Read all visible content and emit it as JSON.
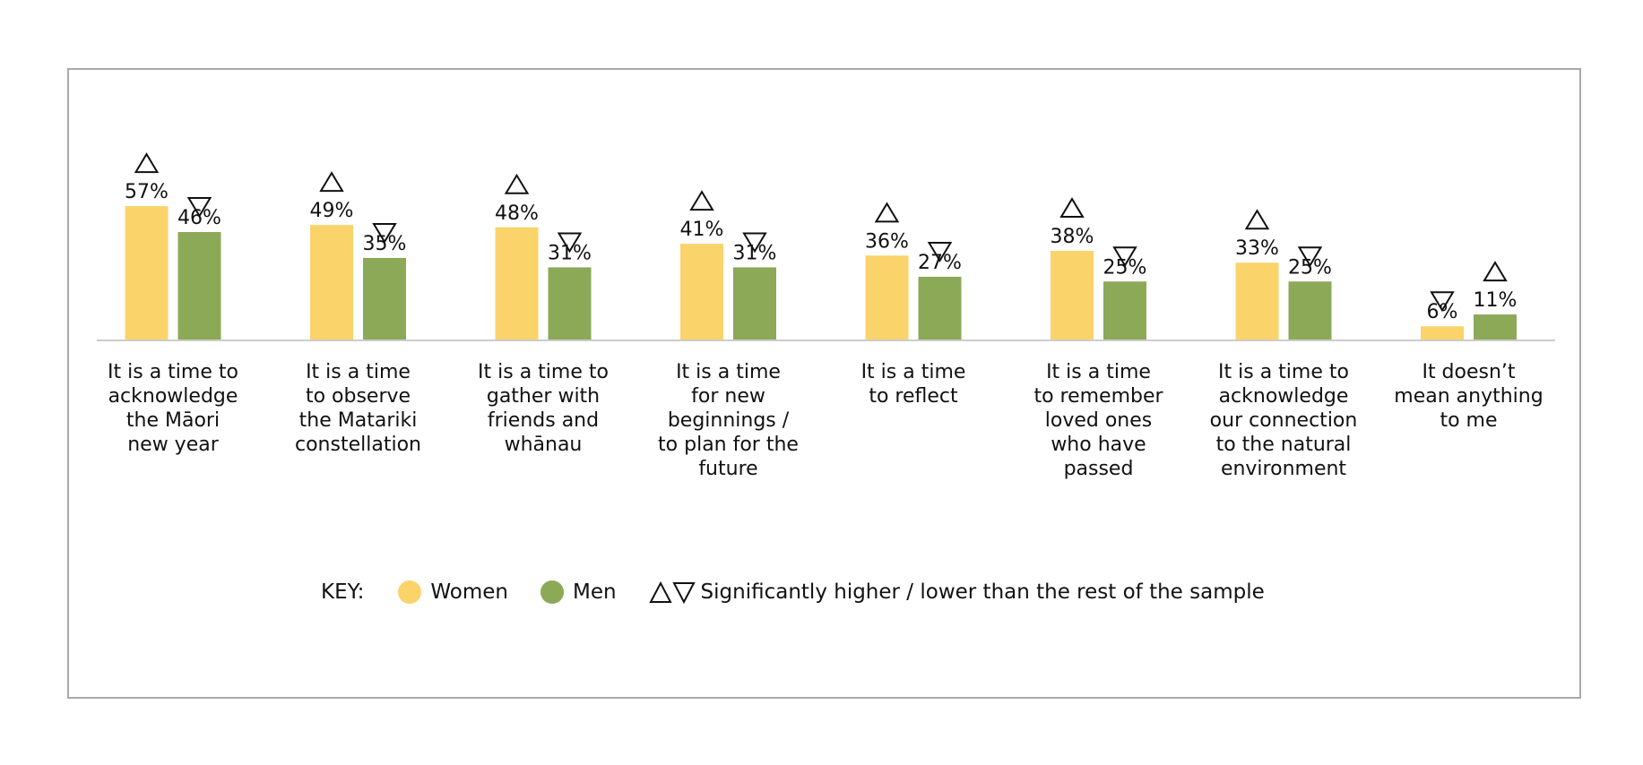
{
  "chart_data": {
    "type": "bar",
    "categories": [
      "It is a time to acknowledge the Māori new year",
      "It is a time to observe the Matariki constellation",
      "It is a time to gather with friends and whānau",
      "It is a time for new beginnings / to plan for the future",
      "It is a time to reflect",
      "It is a time to remember loved ones who have passed",
      "It is a time to acknowledge our connection to the natural environment",
      "It doesn’t mean anything to me"
    ],
    "category_lines": [
      [
        "It is a time to",
        "acknowledge",
        "the Māori",
        "new year"
      ],
      [
        "It is a time",
        "to observe",
        "the Matariki",
        "constellation"
      ],
      [
        "It is a time to",
        "gather with",
        "friends and",
        "whānau"
      ],
      [
        "It is a time",
        "for new",
        "beginnings /",
        "to plan for the",
        "future"
      ],
      [
        "It is a time",
        "to reflect"
      ],
      [
        "It is a time",
        "to remember",
        "loved ones",
        "who have",
        "passed"
      ],
      [
        "It is a time to",
        "acknowledge",
        "our connection",
        "to the natural",
        "environment"
      ],
      [
        "It doesn’t",
        "mean anything",
        "to me"
      ]
    ],
    "series": [
      {
        "name": "Women",
        "color": "#fbd36b",
        "values": [
          57,
          49,
          48,
          41,
          36,
          38,
          33,
          6
        ],
        "labels": [
          "57%",
          "49%",
          "48%",
          "41%",
          "36%",
          "38%",
          "33%",
          "6%"
        ],
        "significance": [
          "higher",
          "higher",
          "higher",
          "higher",
          "higher",
          "higher",
          "higher",
          "lower"
        ]
      },
      {
        "name": "Men",
        "color": "#8ca958",
        "values": [
          46,
          35,
          31,
          31,
          27,
          25,
          25,
          11
        ],
        "labels": [
          "46%",
          "35%",
          "31%",
          "31%",
          "27%",
          "25%",
          "25%",
          "11%"
        ],
        "significance": [
          "lower",
          "lower",
          "lower",
          "lower",
          "lower",
          "lower",
          "lower",
          "higher"
        ]
      }
    ],
    "ylim": [
      0,
      100
    ],
    "grid": false,
    "legend_position": "bottom"
  },
  "legend": {
    "key_label": "KEY:",
    "women_label": "Women",
    "men_label": "Men",
    "significance_label": "Significantly higher / lower than the rest of the sample"
  },
  "colors": {
    "women": "#fbd36b",
    "men": "#8ca958",
    "frame": "#a9a9a9",
    "baseline": "#cccccc"
  }
}
